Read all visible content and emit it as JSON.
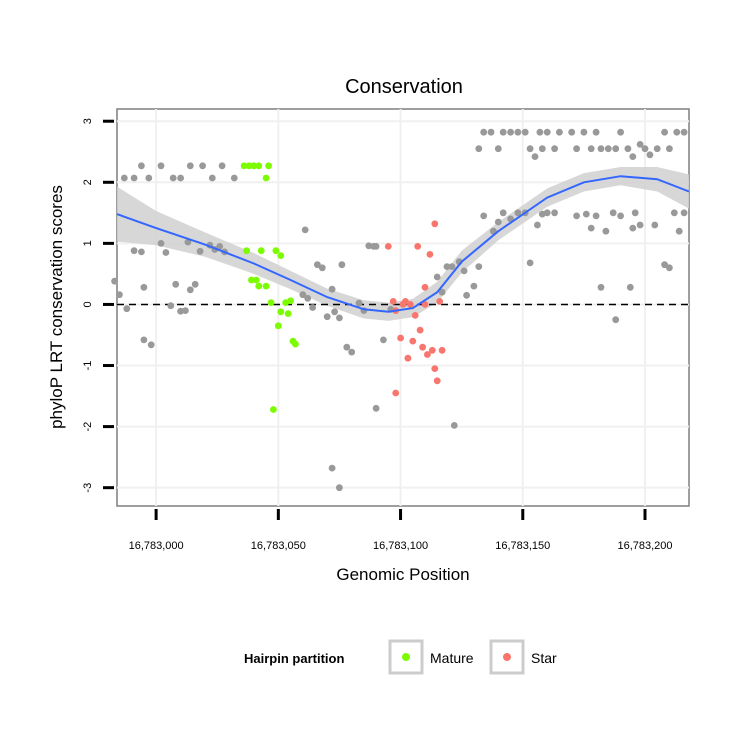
{
  "chart_data": {
    "type": "scatter",
    "title": "Conservation",
    "xlabel": "Genomic Position",
    "ylabel": "phyloP LRT conservation scores",
    "xlim": [
      16782984,
      16783218
    ],
    "ylim": [
      -3.3,
      3.2
    ],
    "x_ticks": [
      16783000,
      16783050,
      16783100,
      16783150,
      16783200
    ],
    "x_tick_labels": [
      "16,783,000",
      "16,783,050",
      "16,783,100",
      "16,783,150",
      "16,783,200"
    ],
    "y_ticks": [
      -3,
      -2,
      -1,
      0,
      1,
      2,
      3
    ],
    "y_tick_labels": [
      "-3",
      "-2",
      "-1",
      "0",
      "1",
      "2",
      "3"
    ],
    "reference_line": {
      "y": 0,
      "style": "dashed"
    },
    "legend": {
      "title": "Hairpin partition",
      "position": "bottom",
      "entries": [
        {
          "label": "Mature",
          "color": "#7CFC00"
        },
        {
          "label": "Star",
          "color": "#F8766D"
        }
      ]
    },
    "colors": {
      "other": "#999999",
      "Mature": "#7CFC00",
      "Star": "#F8766D",
      "smooth": "#3366FF",
      "band": "#D0D0D0"
    },
    "series": [
      {
        "name": "Other",
        "points": [
          [
            16782987,
            2.07
          ],
          [
            16782991,
            2.07
          ],
          [
            16782994,
            2.27
          ],
          [
            16782997,
            2.07
          ],
          [
            16783002,
            2.27
          ],
          [
            16783007,
            2.07
          ],
          [
            16783010,
            2.07
          ],
          [
            16783014,
            2.27
          ],
          [
            16783019,
            2.27
          ],
          [
            16783023,
            2.07
          ],
          [
            16783027,
            2.27
          ],
          [
            16783032,
            2.07
          ],
          [
            16782983,
            0.38
          ],
          [
            16782985,
            0.16
          ],
          [
            16782988,
            -0.07
          ],
          [
            16782991,
            0.88
          ],
          [
            16782994,
            0.86
          ],
          [
            16782995,
            0.28
          ],
          [
            16782995,
            -0.58
          ],
          [
            16782998,
            -0.66
          ],
          [
            16783002,
            1.0
          ],
          [
            16783004,
            0.85
          ],
          [
            16783006,
            -0.02
          ],
          [
            16783008,
            0.33
          ],
          [
            16783010,
            -0.11
          ],
          [
            16783012,
            -0.1
          ],
          [
            16783013,
            1.02
          ],
          [
            16783014,
            0.24
          ],
          [
            16783016,
            0.33
          ],
          [
            16783018,
            0.87
          ],
          [
            16783022,
            0.97
          ],
          [
            16783024,
            0.9
          ],
          [
            16783026,
            0.95
          ],
          [
            16783028,
            0.86
          ],
          [
            16783060,
            0.16
          ],
          [
            16783062,
            0.1
          ],
          [
            16783064,
            -0.05
          ],
          [
            16783066,
            0.65
          ],
          [
            16783068,
            0.6
          ],
          [
            16783070,
            -0.2
          ],
          [
            16783072,
            0.25
          ],
          [
            16783073,
            -0.12
          ],
          [
            16783075,
            -0.22
          ],
          [
            16783076,
            0.65
          ],
          [
            16783078,
            -0.7
          ],
          [
            16783080,
            -0.78
          ],
          [
            16783083,
            0.02
          ],
          [
            16783085,
            -0.1
          ],
          [
            16783087,
            0.96
          ],
          [
            16783089,
            0.95
          ],
          [
            16783090,
            0.95
          ],
          [
            16783093,
            -0.58
          ],
          [
            16783096,
            -0.08
          ],
          [
            16783061,
            1.22
          ],
          [
            16783072,
            -2.68
          ],
          [
            16783075,
            -3.0
          ],
          [
            16783090,
            -1.7
          ],
          [
            16783115,
            0.45
          ],
          [
            16783117,
            0.2
          ],
          [
            16783119,
            0.62
          ],
          [
            16783121,
            0.62
          ],
          [
            16783122,
            -1.98
          ],
          [
            16783124,
            0.7
          ],
          [
            16783126,
            0.55
          ],
          [
            16783127,
            0.15
          ],
          [
            16783130,
            0.3
          ],
          [
            16783132,
            0.62
          ],
          [
            16783134,
            1.45
          ],
          [
            16783138,
            1.2
          ],
          [
            16783140,
            1.35
          ],
          [
            16783142,
            1.5
          ],
          [
            16783145,
            1.4
          ],
          [
            16783148,
            1.5
          ],
          [
            16783151,
            1.5
          ],
          [
            16783153,
            0.68
          ],
          [
            16783132,
            2.55
          ],
          [
            16783134,
            2.82
          ],
          [
            16783137,
            2.82
          ],
          [
            16783140,
            2.55
          ],
          [
            16783142,
            2.82
          ],
          [
            16783145,
            2.82
          ],
          [
            16783148,
            2.82
          ],
          [
            16783151,
            2.82
          ],
          [
            16783153,
            2.55
          ],
          [
            16783155,
            2.42
          ],
          [
            16783157,
            2.82
          ],
          [
            16783160,
            2.82
          ],
          [
            16783158,
            2.55
          ],
          [
            16783163,
            2.55
          ],
          [
            16783165,
            2.82
          ],
          [
            16783170,
            2.82
          ],
          [
            16783172,
            2.55
          ],
          [
            16783175,
            2.82
          ],
          [
            16783178,
            2.55
          ],
          [
            16783180,
            2.82
          ],
          [
            16783182,
            2.55
          ],
          [
            16783185,
            2.55
          ],
          [
            16783188,
            2.55
          ],
          [
            16783190,
            2.82
          ],
          [
            16783193,
            2.55
          ],
          [
            16783195,
            2.42
          ],
          [
            16783198,
            2.62
          ],
          [
            16783200,
            2.55
          ],
          [
            16783202,
            2.45
          ],
          [
            16783205,
            2.55
          ],
          [
            16783208,
            2.82
          ],
          [
            16783210,
            2.55
          ],
          [
            16783213,
            2.82
          ],
          [
            16783216,
            2.82
          ],
          [
            16783156,
            1.3
          ],
          [
            16783158,
            1.48
          ],
          [
            16783160,
            1.5
          ],
          [
            16783163,
            1.5
          ],
          [
            16783172,
            1.45
          ],
          [
            16783176,
            1.48
          ],
          [
            16783178,
            1.25
          ],
          [
            16783180,
            1.45
          ],
          [
            16783184,
            1.2
          ],
          [
            16783187,
            1.5
          ],
          [
            16783190,
            1.45
          ],
          [
            16783195,
            1.25
          ],
          [
            16783196,
            1.5
          ],
          [
            16783198,
            1.3
          ],
          [
            16783204,
            1.3
          ],
          [
            16783208,
            0.65
          ],
          [
            16783210,
            0.6
          ],
          [
            16783212,
            1.5
          ],
          [
            16783214,
            1.2
          ],
          [
            16783216,
            1.5
          ],
          [
            16783188,
            -0.25
          ],
          [
            16783194,
            0.28
          ],
          [
            16783182,
            0.28
          ]
        ]
      },
      {
        "name": "Mature",
        "points": [
          [
            16783036,
            2.27
          ],
          [
            16783038,
            2.27
          ],
          [
            16783040,
            2.27
          ],
          [
            16783042,
            2.27
          ],
          [
            16783046,
            2.27
          ],
          [
            16783045,
            2.07
          ],
          [
            16783037,
            0.88
          ],
          [
            16783039,
            0.4
          ],
          [
            16783041,
            0.4
          ],
          [
            16783042,
            0.3
          ],
          [
            16783043,
            0.88
          ],
          [
            16783045,
            0.3
          ],
          [
            16783047,
            0.03
          ],
          [
            16783049,
            0.88
          ],
          [
            16783051,
            0.8
          ],
          [
            16783051,
            -0.12
          ],
          [
            16783053,
            0.03
          ],
          [
            16783050,
            -0.35
          ],
          [
            16783055,
            0.06
          ],
          [
            16783054,
            -0.15
          ],
          [
            16783056,
            -0.6
          ],
          [
            16783057,
            -0.65
          ],
          [
            16783048,
            -1.72
          ]
        ]
      },
      {
        "name": "Star",
        "points": [
          [
            16783095,
            0.95
          ],
          [
            16783097,
            0.05
          ],
          [
            16783098,
            -0.1
          ],
          [
            16783100,
            -0.55
          ],
          [
            16783101,
            0.0
          ],
          [
            16783102,
            0.05
          ],
          [
            16783103,
            -0.88
          ],
          [
            16783104,
            0.0
          ],
          [
            16783105,
            -0.6
          ],
          [
            16783106,
            -0.18
          ],
          [
            16783107,
            0.95
          ],
          [
            16783108,
            -0.42
          ],
          [
            16783109,
            -0.7
          ],
          [
            16783110,
            0.0
          ],
          [
            16783110,
            0.28
          ],
          [
            16783111,
            -0.82
          ],
          [
            16783112,
            0.82
          ],
          [
            16783113,
            -0.75
          ],
          [
            16783114,
            1.32
          ],
          [
            16783114,
            -1.05
          ],
          [
            16783115,
            -1.25
          ],
          [
            16783116,
            0.05
          ],
          [
            16783117,
            -0.75
          ],
          [
            16783098,
            -1.45
          ]
        ]
      }
    ],
    "smooth": {
      "x": [
        16782984,
        16783000,
        16783020,
        16783040,
        16783055,
        16783070,
        16783085,
        16783095,
        16783105,
        16783115,
        16783125,
        16783140,
        16783160,
        16783175,
        16783190,
        16783205,
        16783218
      ],
      "y": [
        1.48,
        1.25,
        0.98,
        0.67,
        0.4,
        0.12,
        -0.08,
        -0.12,
        -0.06,
        0.2,
        0.7,
        1.2,
        1.75,
        2.0,
        2.1,
        2.05,
        1.85
      ],
      "ci": [
        0.45,
        0.28,
        0.2,
        0.17,
        0.15,
        0.14,
        0.15,
        0.15,
        0.15,
        0.17,
        0.18,
        0.15,
        0.15,
        0.15,
        0.15,
        0.2,
        0.28
      ]
    }
  }
}
